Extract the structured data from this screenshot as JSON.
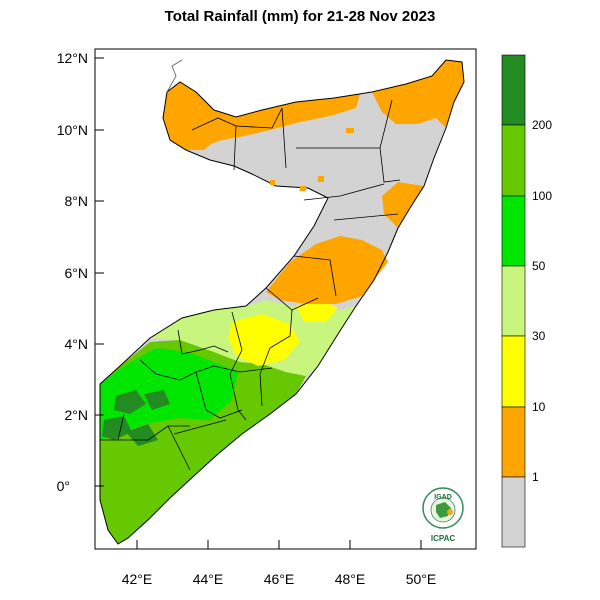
{
  "map": {
    "title": "Total Rainfall (mm) for 21-28 Nov 2023",
    "region": "Somalia",
    "lat_labels": [
      "12°N",
      "10°N",
      "8°N",
      "6°N",
      "4°N",
      "2°N",
      "0°"
    ],
    "lon_labels": [
      "42°E",
      "44°E",
      "46°E",
      "48°E",
      "50°E"
    ],
    "lat_range": [
      -1.8,
      12.2
    ],
    "lon_range": [
      40.9,
      51.6
    ]
  },
  "legend": {
    "unit": "mm",
    "thresholds": [
      "1",
      "10",
      "30",
      "50",
      "100",
      "200"
    ],
    "colors": [
      "#d3d3d3",
      "#ffa500",
      "#ffff00",
      "#c8f57d",
      "#00e600",
      "#66c800",
      "#228b22"
    ]
  },
  "logo": {
    "top_text": "IGAD",
    "bottom_text": "ICPAC"
  }
}
